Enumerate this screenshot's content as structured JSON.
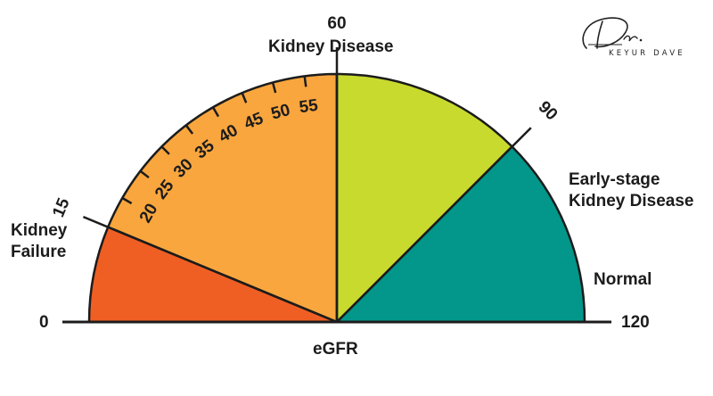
{
  "title": "Kidney Disease",
  "axis_label": "eGFR",
  "zones": [
    {
      "name": "Kidney Failure",
      "from": 0,
      "to": 15,
      "color": "#ef5f24"
    },
    {
      "name": "Kidney Disease",
      "from": 15,
      "to": 60,
      "color": "#f9a63e"
    },
    {
      "name": "Early-stage Kidney Disease",
      "from": 60,
      "to": 90,
      "color": "#c9da2e"
    },
    {
      "name": "Normal",
      "from": 90,
      "to": 120,
      "color": "#02978a"
    }
  ],
  "labels": {
    "kidney_failure_line1": "Kidney",
    "kidney_failure_line2": "Failure",
    "early_stage_line1": "Early-stage",
    "early_stage_line2": "Kidney Disease",
    "normal": "Normal",
    "min_value": "0",
    "max_value": "120"
  },
  "boundary_ticks": [
    "15",
    "60",
    "90"
  ],
  "minor_ticks": [
    "20",
    "25",
    "30",
    "35",
    "40",
    "45",
    "50",
    "55"
  ],
  "logo": {
    "script": "Dr.",
    "name": "KEYUR DAVE"
  }
}
